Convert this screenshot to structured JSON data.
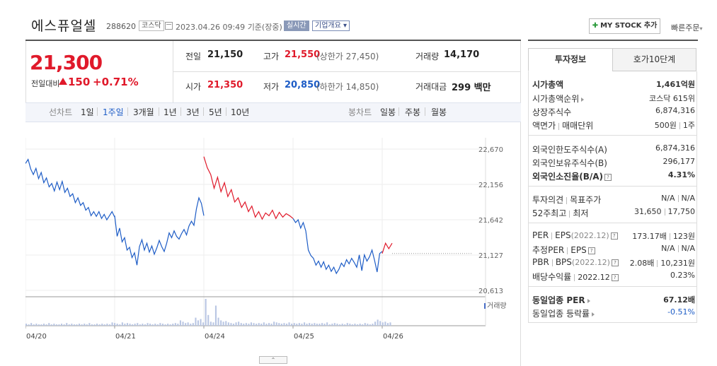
{
  "header": {
    "name": "에스퓨얼셀",
    "code": "288620",
    "market": "코스닥",
    "datetime": "2023.04.26 09:49",
    "basis": "기준(장중)",
    "realtime_label": "실시간",
    "corp_summary_label": "기업개요",
    "mystock_label": "MY STOCK 추가",
    "quick_order_label": "빠른주문"
  },
  "quote": {
    "price": "21,300",
    "change_label": "전일대비",
    "change_value": "150",
    "change_pct": "+0.71%",
    "prev_close_label": "전일",
    "prev_close": "21,150",
    "high_label": "고가",
    "high": "21,550",
    "upper_limit": "(상한가 27,450)",
    "volume_label": "거래량",
    "volume": "14,170",
    "open_label": "시가",
    "open": "21,350",
    "low_label": "저가",
    "low": "20,850",
    "lower_limit": "(하한가 14,850)",
    "amount_label": "거래대금",
    "amount": "299 백만"
  },
  "period_tabs": {
    "line_label": "선차트",
    "line_items": [
      "1일",
      "1주일",
      "3개월",
      "1년",
      "3년",
      "5년",
      "10년"
    ],
    "active_line": "1주일",
    "candle_label": "봉차트",
    "candle_items": [
      "일봉",
      "주봉",
      "월봉"
    ]
  },
  "side_tabs": [
    "투자정보",
    "호가10단계"
  ],
  "invest_info": {
    "group1": [
      {
        "label": "시가총액",
        "value": "1,461억원"
      },
      {
        "label": "시가총액순위",
        "value": "코스닥 615위"
      },
      {
        "label": "상장주식수",
        "value": "6,874,316"
      },
      {
        "label": "액면가",
        "label2": "매매단위",
        "value": "500원",
        "value2": "1주"
      }
    ],
    "group2": [
      {
        "label": "외국인한도주식수(A)",
        "value": "6,874,316"
      },
      {
        "label": "외국인보유주식수(B)",
        "value": "296,177"
      },
      {
        "label": "외국인소진율(B/A)",
        "value": "4.31%"
      }
    ],
    "group3": [
      {
        "label": "투자의견",
        "label2": "목표주가",
        "value": "N/A",
        "value2": "N/A"
      },
      {
        "label": "52주최고",
        "label2": "최저",
        "value": "31,650",
        "value2": "17,750"
      }
    ],
    "group4": [
      {
        "label": "PER",
        "label2": "EPS",
        "sub": "(2022.12)",
        "value": "173.17배",
        "value2": "123원"
      },
      {
        "label": "추정PER",
        "label2": "EPS",
        "value": "N/A",
        "value2": "N/A"
      },
      {
        "label": "PBR",
        "label2": "BPS",
        "sub": "(2022.12)",
        "value": "2.08배",
        "value2": "10,231원"
      },
      {
        "label": "배당수익률",
        "label2": "2022.12",
        "value": "0.23%"
      }
    ],
    "group5": [
      {
        "label": "동일업종 PER",
        "value": "67.12배"
      },
      {
        "label": "동일업종 등락률",
        "value": "-0.51%"
      }
    ]
  },
  "chart_data": {
    "type": "line",
    "y_ticks": [
      "22,670",
      "22,156",
      "21,642",
      "21,127",
      "20,613"
    ],
    "x_ticks": [
      "04/20",
      "04/21",
      "04/24",
      "04/25",
      "04/26"
    ],
    "volume_label": "거래량",
    "ylim": [
      20613,
      22670
    ],
    "prev_close": 21150,
    "colors": {
      "up": "#e0192a",
      "down": "#1d5cc6"
    },
    "series": [
      {
        "segment": "down",
        "values": [
          22460,
          22520,
          22380,
          22300,
          22390,
          22240,
          22330,
          22180,
          22250,
          22120,
          22170,
          22060,
          22190,
          22080,
          22200,
          22040,
          22100,
          21980,
          22020,
          21890,
          21960,
          21850,
          21890,
          21780,
          21820,
          21700,
          21760,
          21690,
          21760,
          21660,
          21720,
          21640,
          21700,
          21760,
          21680
        ]
      },
      {
        "segment": "down",
        "values": [
          21700,
          21400,
          21520,
          21320,
          21380,
          21200,
          21240,
          21090,
          21160,
          20980,
          21250,
          21350,
          21200,
          21300,
          21170,
          21260,
          21140,
          21230,
          21340,
          21250,
          21180,
          21300,
          21450,
          21380,
          21480,
          21400,
          21360,
          21440,
          21500,
          21420,
          21550,
          21620,
          21560,
          21800,
          21960,
          21880,
          21700
        ]
      },
      {
        "segment": "up",
        "values": [
          22560,
          22400,
          22300,
          22100,
          22260,
          22050,
          22180,
          21980,
          22080,
          21900,
          21960,
          21820,
          21900,
          21760,
          21840,
          21680,
          21760,
          21650,
          21740,
          21700,
          21780,
          21660,
          21750,
          21680,
          21730,
          21700,
          21660
        ]
      },
      {
        "segment": "down",
        "values": [
          21660,
          21600,
          21640,
          21520,
          21600,
          21480,
          21200,
          21120,
          21080,
          20980,
          21040,
          20950,
          21030,
          20920,
          20980,
          20890,
          20950,
          20860,
          20920,
          21010,
          20960,
          21060,
          21000,
          21080,
          21020,
          20950,
          21130,
          20900,
          21130,
          21040,
          21100,
          21200,
          21050,
          20880,
          21150,
          21180
        ]
      },
      {
        "segment": "up",
        "values": [
          21150,
          21300,
          21220,
          21300
        ]
      }
    ],
    "volume": [
      3,
      2,
      4,
      2,
      3,
      2,
      2,
      3,
      2,
      4,
      2,
      3,
      2,
      2,
      3,
      2,
      4,
      2,
      3,
      2,
      2,
      3,
      2,
      3,
      2,
      4,
      2,
      2,
      3,
      2,
      3,
      2,
      3,
      2,
      5,
      4,
      3,
      2,
      5,
      3,
      4,
      3,
      2,
      3,
      4,
      2,
      3,
      2,
      4,
      3,
      2,
      3,
      2,
      4,
      3,
      2,
      3,
      2,
      3,
      4,
      3,
      8,
      6,
      4,
      5,
      3,
      4,
      12,
      8,
      10,
      5,
      40,
      16,
      6,
      5,
      30,
      12,
      8,
      6,
      7,
      5,
      4,
      3,
      5,
      6,
      4,
      3,
      4,
      3,
      5,
      4,
      3,
      4,
      3,
      5,
      3,
      4,
      3,
      6,
      5,
      4,
      3,
      4,
      3,
      5,
      3,
      4,
      3,
      4,
      3,
      5,
      3,
      4,
      3,
      4,
      3,
      3,
      4,
      3,
      5,
      2,
      3,
      4,
      3,
      2,
      3,
      2,
      4,
      3,
      2,
      3,
      2,
      3,
      2,
      4,
      3,
      2,
      3,
      6,
      9,
      7,
      5,
      6,
      4,
      5
    ]
  }
}
